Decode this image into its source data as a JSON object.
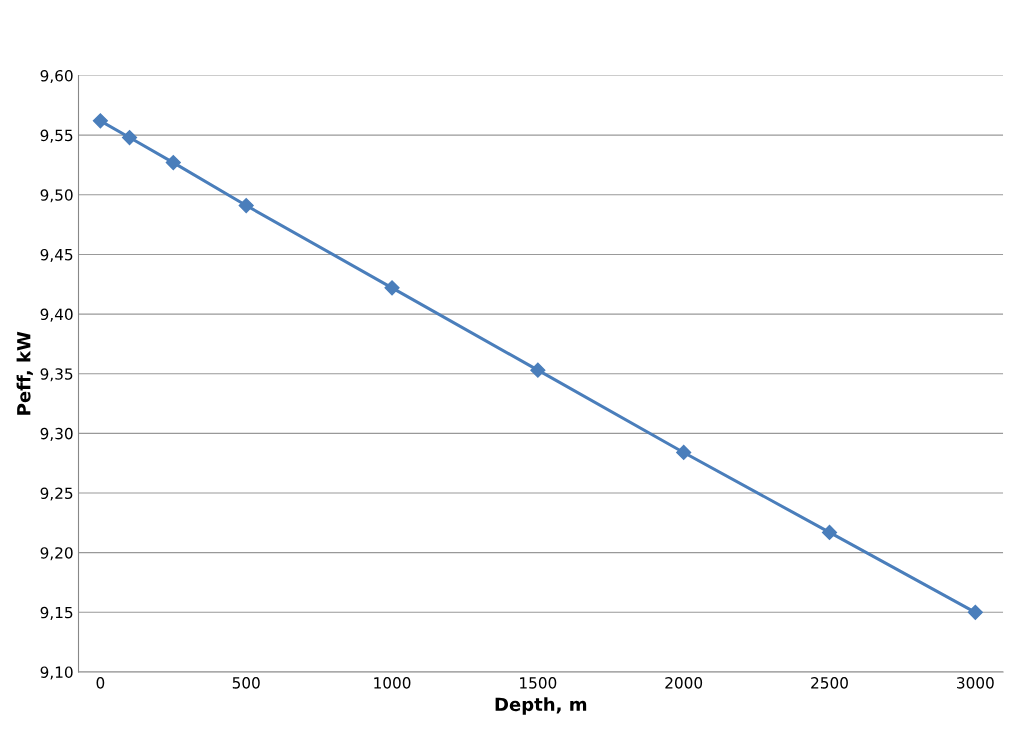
{
  "chart_data": {
    "type": "line",
    "xlabel": "Depth, m",
    "ylabel": "Peff, kW",
    "x": [
      0,
      100,
      250,
      500,
      1000,
      1500,
      2000,
      2500,
      3000
    ],
    "series": [
      {
        "color": "#4a7ebb",
        "values": [
          9.562,
          9.548,
          9.527,
          9.491,
          9.422,
          9.353,
          9.284,
          9.217,
          9.15
        ]
      }
    ],
    "xlim": [
      -75,
      3095
    ],
    "xticks": [
      0,
      500,
      1000,
      1500,
      2000,
      2500,
      3000
    ],
    "ylim": [
      9.1,
      9.6
    ],
    "yticks": [
      {
        "value": 9.1,
        "label": "9,10"
      },
      {
        "value": 9.15,
        "label": "9,15"
      },
      {
        "value": 9.2,
        "label": "9,20"
      },
      {
        "value": 9.25,
        "label": "9,25"
      },
      {
        "value": 9.3,
        "label": "9,30"
      },
      {
        "value": 9.35,
        "label": "9,35"
      },
      {
        "value": 9.4,
        "label": "9,40"
      },
      {
        "value": 9.45,
        "label": "9,45"
      },
      {
        "value": 9.5,
        "label": "9,50"
      },
      {
        "value": 9.55,
        "label": "9,55"
      },
      {
        "value": 9.6,
        "label": "9,60"
      }
    ],
    "grid": "y",
    "marker": "diamond",
    "line_style": "solid"
  }
}
